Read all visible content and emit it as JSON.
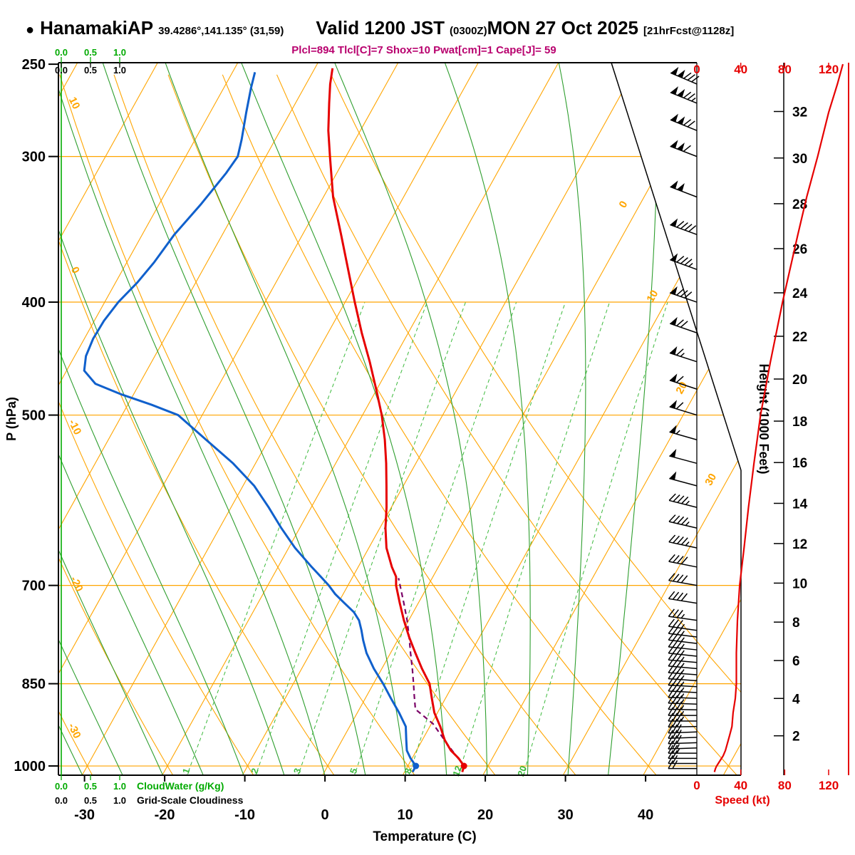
{
  "header": {
    "bullet": "●",
    "station": "HanamakiAP",
    "coords": "39.4286°,141.135° (31,59)",
    "valid": "Valid 1200 JST",
    "valid_z": "(0300Z)",
    "valid_date": "MON 27 Oct 2025",
    "fcst_tag": "[21hrFcst@1128z]",
    "params_line": "Plcl=894 Tlcl[C]=7 Shox=10 Pwat[cm]=1 Cape[J]= 59"
  },
  "params": {
    "plcl_hpa": 894,
    "tlcl_c": 7,
    "showalter": 10,
    "pwat_cm": 1,
    "cape_j": 59
  },
  "axes": {
    "pressure_label": "P (hPa)",
    "temperature_label": "Temperature (C)",
    "height_label": "Height (1000 Feet)",
    "speed_label": "Speed (kt)",
    "cloudwater_label": "CloudWater (g/Kg)",
    "cloudiness_label": "Grid-Scale Cloudiness",
    "cloud_scale_ticks": [
      "0.0",
      "0.5",
      "1.0"
    ]
  },
  "chart_data": {
    "type": "skewt",
    "pressure_axis_hpa": [
      250,
      300,
      400,
      500,
      700,
      850,
      1000
    ],
    "temperature_axis_c": [
      -30,
      -20,
      -10,
      0,
      10,
      20,
      30,
      40
    ],
    "height_axis_kft": [
      2,
      4,
      6,
      8,
      10,
      12,
      14,
      16,
      18,
      20,
      22,
      24,
      26,
      28,
      30,
      32
    ],
    "speed_axis_kt": [
      0,
      40,
      80,
      120
    ],
    "grid": {
      "isotherms_c": {
        "min": -90,
        "max": 50,
        "step": 10
      },
      "dry_adiabats_c": {
        "min": -40,
        "max": 60,
        "step": 10
      },
      "moist_adiabats_c": {
        "min": -40,
        "max": 35,
        "step": 5
      },
      "mixing_ratio_g_kg": [
        1,
        2,
        3,
        5,
        8,
        12,
        20
      ],
      "dry_adiabat_labels": [
        10,
        0,
        -10,
        -20,
        -30
      ],
      "isotherm_labels": [
        0,
        10,
        20,
        30
      ]
    },
    "temperature_profile": [
      [
        1012,
        17.2
      ],
      [
        1000,
        17.0
      ],
      [
        985,
        15.8
      ],
      [
        970,
        14.3
      ],
      [
        950,
        12.8
      ],
      [
        925,
        11.3
      ],
      [
        900,
        9.6
      ],
      [
        875,
        8.3
      ],
      [
        850,
        7.0
      ],
      [
        825,
        5.0
      ],
      [
        800,
        3.1
      ],
      [
        775,
        1.2
      ],
      [
        750,
        -0.6
      ],
      [
        725,
        -2.3
      ],
      [
        700,
        -4.0
      ],
      [
        688,
        -4.6
      ],
      [
        675,
        -5.8
      ],
      [
        650,
        -7.8
      ],
      [
        625,
        -9.3
      ],
      [
        600,
        -10.6
      ],
      [
        575,
        -12.1
      ],
      [
        550,
        -13.7
      ],
      [
        525,
        -15.5
      ],
      [
        500,
        -17.6
      ],
      [
        475,
        -20.1
      ],
      [
        450,
        -22.8
      ],
      [
        425,
        -25.8
      ],
      [
        400,
        -28.8
      ],
      [
        375,
        -31.9
      ],
      [
        350,
        -35.2
      ],
      [
        325,
        -38.8
      ],
      [
        300,
        -42.0
      ],
      [
        285,
        -44.0
      ],
      [
        270,
        -45.8
      ],
      [
        260,
        -47.0
      ],
      [
        252,
        -47.8
      ]
    ],
    "dewpoint_profile": [
      [
        1012,
        11.0
      ],
      [
        1000,
        11.0
      ],
      [
        985,
        9.8
      ],
      [
        970,
        8.8
      ],
      [
        950,
        8.0
      ],
      [
        925,
        7.0
      ],
      [
        900,
        5.2
      ],
      [
        875,
        3.2
      ],
      [
        850,
        1.2
      ],
      [
        825,
        -1.0
      ],
      [
        800,
        -3.0
      ],
      [
        780,
        -4.3
      ],
      [
        765,
        -5.2
      ],
      [
        750,
        -6.2
      ],
      [
        738,
        -7.4
      ],
      [
        725,
        -9.2
      ],
      [
        712,
        -11.0
      ],
      [
        700,
        -12.4
      ],
      [
        688,
        -14.0
      ],
      [
        675,
        -15.8
      ],
      [
        650,
        -19.2
      ],
      [
        625,
        -22.3
      ],
      [
        600,
        -25.3
      ],
      [
        575,
        -28.6
      ],
      [
        550,
        -32.8
      ],
      [
        525,
        -37.8
      ],
      [
        500,
        -43.0
      ],
      [
        490,
        -47.0
      ],
      [
        480,
        -51.5
      ],
      [
        470,
        -55.5
      ],
      [
        458,
        -57.8
      ],
      [
        445,
        -58.6
      ],
      [
        430,
        -58.9
      ],
      [
        415,
        -58.8
      ],
      [
        400,
        -58.3
      ],
      [
        385,
        -57.3
      ],
      [
        370,
        -56.6
      ],
      [
        350,
        -56.0
      ],
      [
        330,
        -54.8
      ],
      [
        310,
        -53.8
      ],
      [
        300,
        -53.5
      ],
      [
        290,
        -54.2
      ],
      [
        275,
        -55.5
      ],
      [
        262,
        -56.6
      ],
      [
        254,
        -57.2
      ]
    ],
    "parcel_profile": [
      [
        1000,
        17.0
      ],
      [
        960,
        13.6
      ],
      [
        920,
        10.2
      ],
      [
        894,
        7.0
      ],
      [
        870,
        5.9
      ],
      [
        850,
        5.0
      ],
      [
        825,
        3.8
      ],
      [
        800,
        2.5
      ],
      [
        775,
        1.2
      ],
      [
        750,
        -0.2
      ],
      [
        725,
        -1.8
      ],
      [
        700,
        -3.5
      ],
      [
        690,
        -4.2
      ]
    ],
    "wind_speed_profile": [
      [
        1012,
        16
      ],
      [
        1005,
        17
      ],
      [
        1000,
        18
      ],
      [
        990,
        21
      ],
      [
        980,
        24
      ],
      [
        970,
        26
      ],
      [
        955,
        28
      ],
      [
        940,
        30
      ],
      [
        925,
        32
      ],
      [
        900,
        33
      ],
      [
        875,
        35
      ],
      [
        850,
        36
      ],
      [
        800,
        36
      ],
      [
        750,
        37
      ],
      [
        700,
        39
      ],
      [
        650,
        43
      ],
      [
        600,
        47
      ],
      [
        550,
        52
      ],
      [
        500,
        58
      ],
      [
        450,
        67
      ],
      [
        400,
        78
      ],
      [
        350,
        92
      ],
      [
        325,
        100
      ],
      [
        300,
        110
      ],
      [
        275,
        120
      ],
      [
        260,
        128
      ],
      [
        250,
        133
      ]
    ],
    "wind_barbs": [
      [
        1005,
        270,
        18
      ],
      [
        995,
        270,
        20
      ],
      [
        985,
        270,
        22
      ],
      [
        975,
        270,
        25
      ],
      [
        965,
        268,
        27
      ],
      [
        955,
        268,
        29
      ],
      [
        945,
        268,
        30
      ],
      [
        935,
        268,
        31
      ],
      [
        925,
        269,
        32
      ],
      [
        915,
        270,
        33
      ],
      [
        905,
        270,
        33
      ],
      [
        895,
        271,
        34
      ],
      [
        885,
        272,
        34
      ],
      [
        875,
        272,
        35
      ],
      [
        865,
        273,
        35
      ],
      [
        855,
        273,
        36
      ],
      [
        845,
        274,
        36
      ],
      [
        835,
        274,
        36
      ],
      [
        825,
        275,
        36
      ],
      [
        815,
        275,
        36
      ],
      [
        805,
        276,
        36
      ],
      [
        795,
        276,
        37
      ],
      [
        785,
        277,
        37
      ],
      [
        775,
        277,
        37
      ],
      [
        765,
        278,
        37
      ],
      [
        750,
        278,
        37
      ],
      [
        725,
        279,
        38
      ],
      [
        700,
        280,
        39
      ],
      [
        675,
        281,
        41
      ],
      [
        650,
        282,
        43
      ],
      [
        625,
        283,
        45
      ],
      [
        600,
        284,
        47
      ],
      [
        575,
        285,
        50
      ],
      [
        550,
        285,
        52
      ],
      [
        525,
        286,
        55
      ],
      [
        500,
        287,
        58
      ],
      [
        475,
        288,
        62
      ],
      [
        450,
        288,
        67
      ],
      [
        425,
        289,
        72
      ],
      [
        400,
        289,
        78
      ],
      [
        375,
        290,
        85
      ],
      [
        350,
        290,
        92
      ],
      [
        325,
        291,
        100
      ],
      [
        300,
        291,
        110
      ],
      [
        285,
        292,
        118
      ],
      [
        270,
        292,
        126
      ],
      [
        260,
        293,
        132
      ]
    ],
    "surface_markers": {
      "pressure_hpa": 1000,
      "temperature_c": 17,
      "dewpoint_c": 11
    }
  },
  "colors": {
    "grid_orange": "#FFA500",
    "moist_green": "#2E9E2E",
    "mixing_green": "#3CB93C",
    "temperature_red": "#E60000",
    "dewpoint_blue": "#1060CC",
    "parcel_purple": "#7A0066",
    "params_magenta": "#B8006E",
    "speed_red": "#E60000",
    "cloudwater_green": "#00AA00",
    "axis_black": "#000000"
  }
}
